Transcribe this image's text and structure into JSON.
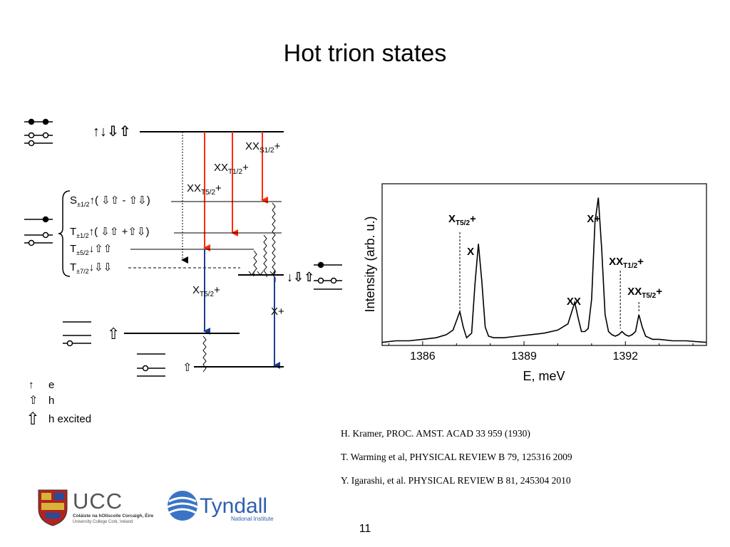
{
  "slide": {
    "title": "Hot trion states",
    "page_number": "11"
  },
  "diagram": {
    "top_state_label": "↑↓⇩⇧",
    "transitions": {
      "xx_s": {
        "base": "XX",
        "sub": "S1/2",
        "suffix": "+",
        "color": "#ff2a00"
      },
      "xx_t1": {
        "base": "XX",
        "sub": "T1/2",
        "suffix": "+",
        "color": "#ff2a00"
      },
      "xx_t5": {
        "base": "XX",
        "sub": "T5/2",
        "suffix": "+",
        "color": "#ff2a00"
      },
      "x_t5": {
        "base": "X",
        "sub": "T5/2",
        "suffix": "+",
        "color": "#1a3d8f"
      },
      "x_plus": {
        "base": "X+",
        "sub": "",
        "suffix": "",
        "color": "#1a3d8f"
      }
    },
    "levels": {
      "s": {
        "base": "S",
        "sub": "±1/2",
        "state": "↑( ⇩⇧ - ⇧⇩)"
      },
      "t1": {
        "base": "T",
        "sub": "±1/2",
        "state": "↑( ⇩⇧ +⇧⇩)"
      },
      "t5": {
        "base": "T",
        "sub": "±5/2",
        "state": "↓⇧⇧"
      },
      "t7": {
        "base": "T",
        "sub": "±7/2",
        "state": "↓⇩⇩"
      }
    },
    "right_state_label": "↓⇩⇧",
    "lower_state_label": "⇧",
    "bottom_state_label": "⇧",
    "legend": [
      {
        "symbol": "↑",
        "label": "e"
      },
      {
        "symbol": "⇧",
        "label": "h"
      },
      {
        "symbol": "⇧",
        "label": "h excited"
      }
    ]
  },
  "chart_data": {
    "type": "line",
    "title": "",
    "xlabel": "E, meV",
    "ylabel": "Intensity (arb. u.)",
    "xlim": [
      1384.8,
      1394.4
    ],
    "ylim": [
      0,
      1.05
    ],
    "xticks": [
      "1386",
      "1389",
      "1392"
    ],
    "xtick_values": [
      1386,
      1389,
      1392
    ],
    "series": [
      {
        "values_note": "",
        "x": [
          1384.8,
          1385.2,
          1385.6,
          1386.0,
          1386.4,
          1386.7,
          1386.9,
          1387.0,
          1387.1,
          1387.2,
          1387.3,
          1387.45,
          1387.55,
          1387.65,
          1387.75,
          1387.85,
          1387.95,
          1388.1,
          1388.4,
          1388.8,
          1389.2,
          1389.6,
          1390.0,
          1390.3,
          1390.5,
          1390.6,
          1390.7,
          1390.8,
          1390.9,
          1391.0,
          1391.1,
          1391.2,
          1391.3,
          1391.4,
          1391.5,
          1391.6,
          1391.7,
          1391.8,
          1391.9,
          1392.0,
          1392.1,
          1392.2,
          1392.3,
          1392.4,
          1392.5,
          1392.6,
          1392.7,
          1392.8,
          1393.0,
          1393.4,
          1393.8,
          1394.4
        ],
        "y": [
          0.02,
          0.03,
          0.03,
          0.04,
          0.05,
          0.07,
          0.1,
          0.16,
          0.22,
          0.12,
          0.05,
          0.08,
          0.4,
          0.66,
          0.42,
          0.12,
          0.06,
          0.05,
          0.05,
          0.06,
          0.07,
          0.08,
          0.1,
          0.14,
          0.28,
          0.18,
          0.09,
          0.09,
          0.11,
          0.3,
          0.8,
          0.96,
          0.62,
          0.2,
          0.09,
          0.07,
          0.06,
          0.07,
          0.09,
          0.07,
          0.06,
          0.07,
          0.09,
          0.2,
          0.12,
          0.06,
          0.05,
          0.04,
          0.04,
          0.03,
          0.03,
          0.02
        ]
      }
    ],
    "annotations": [
      {
        "x": 1387.1,
        "base": "X",
        "sub": "T5/2",
        "suffix": "+",
        "dashed": true
      },
      {
        "x": 1387.65,
        "base": "X",
        "sub": "",
        "suffix": "",
        "dashed": false
      },
      {
        "x": 1390.6,
        "base": "XX",
        "sub": "",
        "suffix": "",
        "dashed": false
      },
      {
        "x": 1391.2,
        "base": "X+",
        "sub": "",
        "suffix": "",
        "dashed": false
      },
      {
        "x": 1391.85,
        "base": "XX",
        "sub": "T1/2",
        "suffix": "+",
        "dashed": true
      },
      {
        "x": 1392.4,
        "base": "XX",
        "sub": "T5/2",
        "suffix": "+",
        "dashed": true
      }
    ]
  },
  "references": [
    "H. Kramer, PROC. AMST. ACAD 33 959 (1930)",
    "T. Warming et al, PHYSICAL REVIEW B 79, 125316 2009",
    "Y. Igarashi, et al. PHYSICAL REVIEW B 81, 245304 2010"
  ],
  "logos": {
    "ucc": {
      "name": "UCC",
      "line1": "Coláiste na hOllscoile Corcaigh, Éire",
      "line2": "University College Cork, Ireland"
    },
    "tyndall": {
      "name": "Tyndall",
      "subtitle": "National Institute"
    }
  }
}
